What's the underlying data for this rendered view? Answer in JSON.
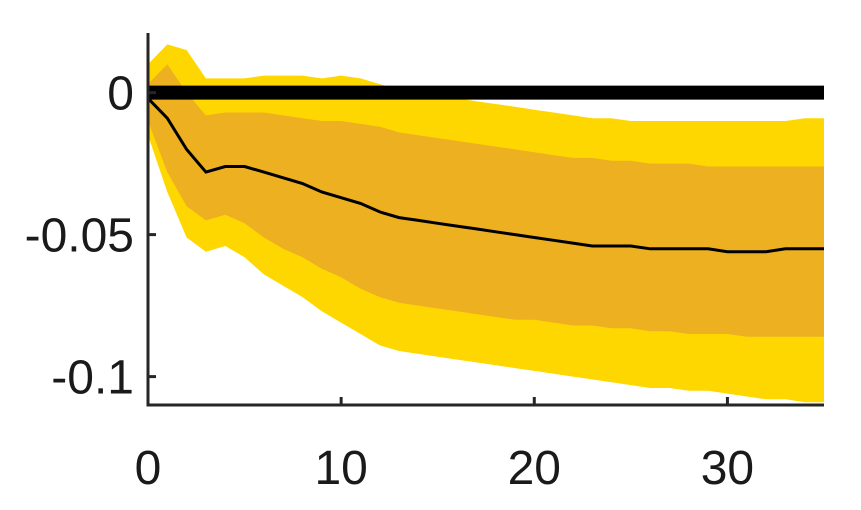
{
  "chart_data": {
    "type": "area",
    "title": "",
    "xlabel": "",
    "ylabel": "",
    "xlim": [
      0,
      35
    ],
    "ylim": [
      -0.11,
      0.021
    ],
    "grid": false,
    "legend": "none",
    "x_ticks": [
      {
        "value": 0,
        "label": "0"
      },
      {
        "value": 10,
        "label": "10"
      },
      {
        "value": 20,
        "label": "20"
      },
      {
        "value": 30,
        "label": "30"
      }
    ],
    "y_ticks": [
      {
        "value": 0,
        "label": "0"
      },
      {
        "value": -0.05,
        "label": "-0.05"
      },
      {
        "value": -0.1,
        "label": "-0.1"
      }
    ],
    "zero_line": {
      "y": 0,
      "color": "#000000"
    },
    "x": [
      0,
      1,
      2,
      3,
      4,
      5,
      6,
      7,
      8,
      9,
      10,
      11,
      12,
      13,
      14,
      15,
      16,
      17,
      18,
      19,
      20,
      21,
      22,
      23,
      24,
      25,
      26,
      27,
      28,
      29,
      30,
      31,
      32,
      33,
      34,
      35
    ],
    "series": [
      {
        "role": "outer-band",
        "color": "#ffd700",
        "upper": [
          0.01,
          0.017,
          0.015,
          0.005,
          0.005,
          0.005,
          0.006,
          0.006,
          0.006,
          0.005,
          0.006,
          0.005,
          0.003,
          0.001,
          0.0,
          -0.001,
          -0.002,
          -0.003,
          -0.004,
          -0.005,
          -0.006,
          -0.007,
          -0.008,
          -0.009,
          -0.009,
          -0.01,
          -0.01,
          -0.01,
          -0.01,
          -0.01,
          -0.01,
          -0.01,
          -0.01,
          -0.01,
          -0.009,
          -0.009
        ],
        "lower": [
          -0.015,
          -0.035,
          -0.051,
          -0.056,
          -0.054,
          -0.058,
          -0.064,
          -0.068,
          -0.072,
          -0.077,
          -0.081,
          -0.085,
          -0.089,
          -0.091,
          -0.092,
          -0.093,
          -0.094,
          -0.095,
          -0.096,
          -0.097,
          -0.098,
          -0.099,
          -0.1,
          -0.101,
          -0.102,
          -0.103,
          -0.104,
          -0.104,
          -0.105,
          -0.105,
          -0.106,
          -0.107,
          -0.108,
          -0.108,
          -0.109,
          -0.109
        ]
      },
      {
        "role": "inner-band",
        "color": "#ecb021",
        "upper": [
          0.003,
          0.01,
          0.0,
          -0.008,
          -0.007,
          -0.007,
          -0.007,
          -0.008,
          -0.009,
          -0.01,
          -0.01,
          -0.011,
          -0.012,
          -0.014,
          -0.015,
          -0.016,
          -0.017,
          -0.018,
          -0.019,
          -0.02,
          -0.021,
          -0.022,
          -0.023,
          -0.023,
          -0.024,
          -0.024,
          -0.025,
          -0.025,
          -0.025,
          -0.026,
          -0.026,
          -0.026,
          -0.026,
          -0.026,
          -0.026,
          -0.026
        ],
        "lower": [
          -0.01,
          -0.028,
          -0.04,
          -0.045,
          -0.043,
          -0.046,
          -0.051,
          -0.055,
          -0.058,
          -0.062,
          -0.065,
          -0.069,
          -0.072,
          -0.074,
          -0.075,
          -0.076,
          -0.077,
          -0.078,
          -0.079,
          -0.08,
          -0.08,
          -0.081,
          -0.082,
          -0.082,
          -0.083,
          -0.083,
          -0.084,
          -0.084,
          -0.085,
          -0.085,
          -0.085,
          -0.086,
          -0.086,
          -0.086,
          -0.086,
          -0.086
        ]
      },
      {
        "role": "median",
        "color": "#000000",
        "values": [
          -0.002,
          -0.009,
          -0.02,
          -0.028,
          -0.026,
          -0.026,
          -0.028,
          -0.03,
          -0.032,
          -0.035,
          -0.037,
          -0.039,
          -0.042,
          -0.044,
          -0.045,
          -0.046,
          -0.047,
          -0.048,
          -0.049,
          -0.05,
          -0.051,
          -0.052,
          -0.053,
          -0.054,
          -0.054,
          -0.054,
          -0.055,
          -0.055,
          -0.055,
          -0.055,
          -0.056,
          -0.056,
          -0.056,
          -0.055,
          -0.055,
          -0.055
        ]
      }
    ]
  }
}
